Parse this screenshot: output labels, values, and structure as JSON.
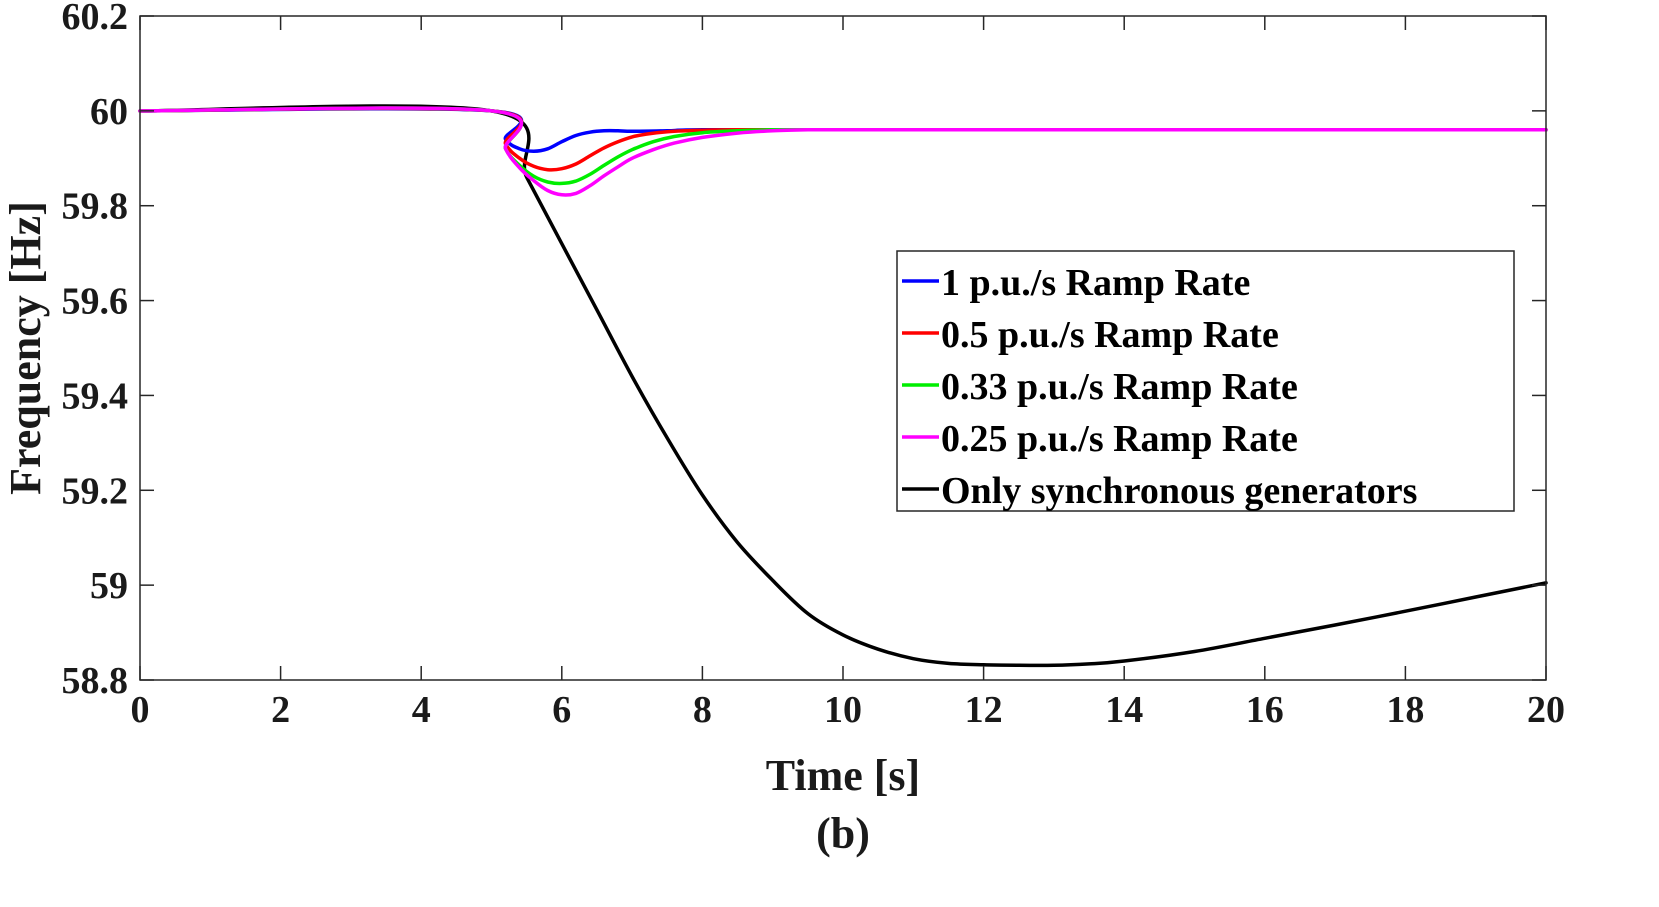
{
  "chart_data": {
    "type": "line",
    "title": "",
    "caption": "(b)",
    "xlabel": "Time [s]",
    "ylabel": "Frequency [Hz]",
    "xlim": [
      0,
      20
    ],
    "ylim": [
      58.8,
      60.2
    ],
    "xticks": [
      "0",
      "2",
      "4",
      "6",
      "8",
      "10",
      "12",
      "14",
      "16",
      "18",
      "20"
    ],
    "yticks": [
      "58.8",
      "59",
      "59.2",
      "59.4",
      "59.6",
      "59.8",
      "60",
      "60.2"
    ],
    "grid": false,
    "legend_position": "right",
    "series": [
      {
        "name": "1 p.u./s Ramp Rate",
        "color": "#0000ff",
        "x": [
          0,
          5,
          5.2,
          5.4,
          5.6,
          5.8,
          6.0,
          6.2,
          6.4,
          6.6,
          6.8,
          7.0,
          7.5,
          8,
          10,
          12,
          14,
          16,
          18,
          20
        ],
        "y": [
          60,
          60,
          59.94,
          59.92,
          59.915,
          59.92,
          59.935,
          59.948,
          59.955,
          59.958,
          59.958,
          59.957,
          59.958,
          59.96,
          59.96,
          59.96,
          59.96,
          59.96,
          59.96,
          59.96
        ]
      },
      {
        "name": "0.5 p.u./s Ramp Rate",
        "color": "#ff0000",
        "x": [
          0,
          5,
          5.2,
          5.4,
          5.6,
          5.8,
          6.0,
          6.2,
          6.4,
          6.6,
          6.8,
          7.0,
          7.2,
          7.5,
          8.0,
          8.5,
          10,
          12,
          14,
          16,
          18,
          20
        ],
        "y": [
          60,
          60,
          59.93,
          59.9,
          59.883,
          59.876,
          59.878,
          59.888,
          59.905,
          59.922,
          59.935,
          59.945,
          59.951,
          59.956,
          59.959,
          59.96,
          59.96,
          59.96,
          59.96,
          59.96,
          59.96,
          59.96
        ]
      },
      {
        "name": "0.33 p.u./s Ramp Rate",
        "color": "#00ee00",
        "x": [
          0,
          5,
          5.2,
          5.4,
          5.6,
          5.8,
          6.0,
          6.2,
          6.4,
          6.6,
          6.8,
          7.0,
          7.3,
          7.6,
          8.0,
          8.5,
          9.0,
          10,
          12,
          14,
          16,
          18,
          20
        ],
        "y": [
          60,
          60,
          59.92,
          59.885,
          59.862,
          59.85,
          59.847,
          59.852,
          59.866,
          59.885,
          59.903,
          59.918,
          59.935,
          59.946,
          59.954,
          59.958,
          59.96,
          59.96,
          59.96,
          59.96,
          59.96,
          59.96,
          59.96
        ]
      },
      {
        "name": "0.25 p.u./s Ramp Rate",
        "color": "#ff00ff",
        "x": [
          0,
          5,
          5.2,
          5.4,
          5.6,
          5.8,
          6.0,
          6.2,
          6.4,
          6.6,
          6.8,
          7.0,
          7.3,
          7.6,
          8.0,
          8.5,
          9.0,
          9.5,
          10,
          12,
          14,
          16,
          18,
          20
        ],
        "y": [
          60,
          60,
          59.92,
          59.88,
          59.853,
          59.832,
          59.823,
          59.826,
          59.842,
          59.863,
          59.882,
          59.9,
          59.918,
          59.932,
          59.944,
          59.953,
          59.958,
          59.96,
          59.96,
          59.96,
          59.96,
          59.96,
          59.96,
          59.96
        ]
      },
      {
        "name": "Only synchronous generators",
        "color": "#000000",
        "x": [
          0,
          5,
          5.5,
          6,
          6.5,
          7,
          7.5,
          8,
          8.5,
          9,
          9.5,
          10,
          10.5,
          11,
          11.5,
          12,
          12.5,
          13,
          13.5,
          14,
          15,
          16,
          17,
          18,
          19,
          20
        ],
        "y": [
          60,
          60,
          59.86,
          59.72,
          59.58,
          59.44,
          59.31,
          59.19,
          59.09,
          59.01,
          58.94,
          58.895,
          58.865,
          58.845,
          58.835,
          58.832,
          58.831,
          58.831,
          58.834,
          58.84,
          58.86,
          58.888,
          58.916,
          58.945,
          58.975,
          59.005
        ]
      }
    ]
  }
}
